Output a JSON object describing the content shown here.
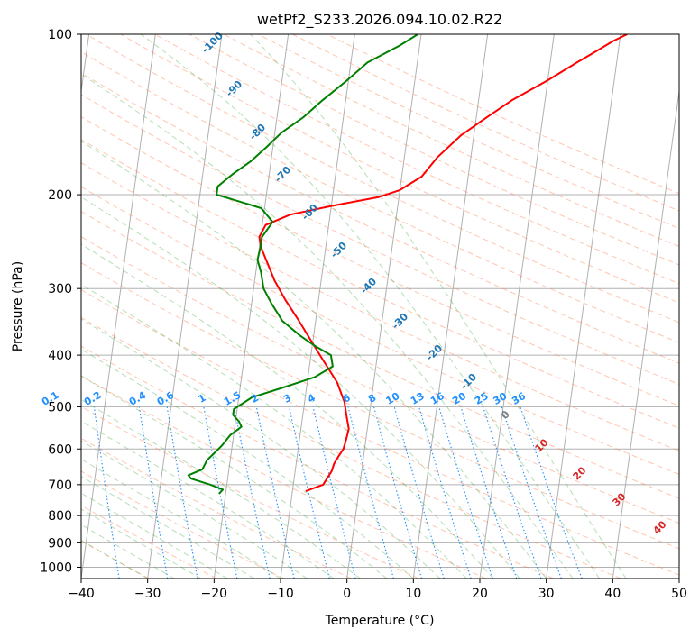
{
  "chart_data": {
    "type": "line",
    "title": "wetPf2_S233.2026.094.10.02.R22",
    "xlabel": "Temperature (°C)",
    "ylabel": "Pressure (hPa)",
    "xlim": [
      -40,
      50
    ],
    "ylim": [
      1050,
      100
    ],
    "y_scale": "log",
    "x_ticks": [
      -40,
      -30,
      -20,
      -10,
      0,
      10,
      20,
      30,
      40,
      50
    ],
    "x_tick_labels": [
      "−40",
      "−30",
      "−20",
      "−10",
      "0",
      "10",
      "20",
      "30",
      "40",
      "50"
    ],
    "y_ticks": [
      100,
      200,
      300,
      400,
      500,
      600,
      700,
      800,
      900,
      1000
    ],
    "y_tick_labels": [
      "100",
      "200",
      "300",
      "400",
      "500",
      "600",
      "700",
      "800",
      "900",
      "1000"
    ],
    "grid": true,
    "skew": "skew-T",
    "series": [
      {
        "color": "#ff0000",
        "points": [
          [
            -8.0,
            720
          ],
          [
            -5.5,
            700
          ],
          [
            -4.5,
            660
          ],
          [
            -4.3,
            640
          ],
          [
            -3.8,
            620
          ],
          [
            -3.2,
            600
          ],
          [
            -3.0,
            580
          ],
          [
            -2.8,
            550
          ],
          [
            -3.4,
            520
          ],
          [
            -4.0,
            490
          ],
          [
            -5.5,
            450
          ],
          [
            -8.0,
            410
          ],
          [
            -10.0,
            380
          ],
          [
            -12.5,
            345
          ],
          [
            -15.0,
            315
          ],
          [
            -17.0,
            290
          ],
          [
            -18.5,
            268
          ],
          [
            -19.8,
            250
          ],
          [
            -20.2,
            240
          ],
          [
            -19.5,
            228
          ],
          [
            -16.0,
            218
          ],
          [
            -10.0,
            210
          ],
          [
            -3.0,
            202
          ],
          [
            0.0,
            196
          ],
          [
            3.0,
            185
          ],
          [
            5.0,
            170
          ],
          [
            8.0,
            155
          ],
          [
            11.0,
            145
          ],
          [
            15.0,
            133
          ],
          [
            20.0,
            122
          ],
          [
            24.0,
            113
          ],
          [
            26.5,
            108
          ],
          [
            29.0,
            103
          ],
          [
            31.0,
            100
          ]
        ]
      },
      {
        "color": "#008000",
        "points": [
          [
            -21.0,
            728
          ],
          [
            -20.5,
            715
          ],
          [
            -22.5,
            700
          ],
          [
            -25.5,
            682
          ],
          [
            -26.0,
            672
          ],
          [
            -24.0,
            655
          ],
          [
            -23.5,
            630
          ],
          [
            -22.5,
            610
          ],
          [
            -21.5,
            590
          ],
          [
            -20.5,
            565
          ],
          [
            -19.0,
            545
          ],
          [
            -19.5,
            532
          ],
          [
            -20.5,
            518
          ],
          [
            -20.5,
            505
          ],
          [
            -18.0,
            480
          ],
          [
            -13.5,
            460
          ],
          [
            -9.0,
            440
          ],
          [
            -6.5,
            420
          ],
          [
            -7.0,
            400
          ],
          [
            -9.5,
            385
          ],
          [
            -12.0,
            368
          ],
          [
            -15.0,
            345
          ],
          [
            -17.0,
            320
          ],
          [
            -18.5,
            300
          ],
          [
            -19.2,
            280
          ],
          [
            -20.0,
            265
          ],
          [
            -19.8,
            250
          ],
          [
            -19.8,
            240
          ],
          [
            -18.5,
            225
          ],
          [
            -20.5,
            212
          ],
          [
            -24.5,
            205
          ],
          [
            -27.5,
            200
          ],
          [
            -27.5,
            193
          ],
          [
            -25.5,
            183
          ],
          [
            -23.0,
            173
          ],
          [
            -21.0,
            163
          ],
          [
            -19.0,
            153
          ],
          [
            -16.0,
            143
          ],
          [
            -13.5,
            133
          ],
          [
            -10.5,
            123
          ],
          [
            -7.5,
            113
          ],
          [
            -3.0,
            105
          ],
          [
            -0.5,
            100
          ]
        ]
      }
    ],
    "dry_adiabat_labels": [
      "-100",
      "-90",
      "-80",
      "-70",
      "-60",
      "-50",
      "-40",
      "-30",
      "-20",
      "-10",
      "0",
      "10",
      "20",
      "30",
      "40"
    ],
    "mixing_ratio_labels": [
      "0.1",
      "0.2",
      "0.4",
      "0.6",
      "1",
      "1.5",
      "2",
      "3",
      "4",
      "6",
      "8",
      "10",
      "13",
      "16",
      "20",
      "25",
      "30",
      "36"
    ],
    "colors": {
      "temperature": "#ff0000",
      "dewpoint": "#008000",
      "dry_adiabat": "#ff7f50",
      "moist_adiabat": "#2ca02c",
      "mixing_ratio": "#1e90ff",
      "isotherm": "#808080",
      "label_cold": "#1f77b4",
      "label_zero": "#808080",
      "label_warm": "#d62728"
    }
  }
}
